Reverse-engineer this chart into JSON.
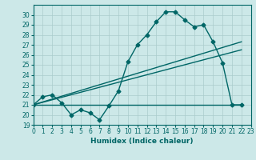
{
  "bg_color": "#cce8e8",
  "grid_color": "#aacccc",
  "line_color": "#006666",
  "x_min": 0,
  "x_max": 23,
  "y_min": 19,
  "y_max": 31,
  "xlabel": "Humidex (Indice chaleur)",
  "yticks": [
    19,
    20,
    21,
    22,
    23,
    24,
    25,
    26,
    27,
    28,
    29,
    30
  ],
  "xticks": [
    0,
    1,
    2,
    3,
    4,
    5,
    6,
    7,
    8,
    9,
    10,
    11,
    12,
    13,
    14,
    15,
    16,
    17,
    18,
    19,
    20,
    21,
    22,
    23
  ],
  "curve1_x": [
    0,
    1,
    2,
    3,
    4,
    5,
    6,
    7,
    8,
    9,
    10,
    11,
    12,
    13,
    14,
    15,
    16,
    17,
    18,
    19,
    20,
    21,
    22
  ],
  "curve1_y": [
    21.0,
    21.8,
    22.0,
    21.2,
    20.0,
    20.5,
    20.2,
    19.5,
    20.9,
    22.4,
    25.3,
    27.0,
    28.0,
    29.3,
    30.3,
    30.3,
    29.5,
    28.8,
    29.0,
    27.3,
    25.2,
    21.0,
    21.0
  ],
  "line2_x": [
    0,
    22
  ],
  "line2_y": [
    21.0,
    27.3
  ],
  "line3_x": [
    0,
    19,
    22
  ],
  "line3_y": [
    21.0,
    21.0,
    21.0
  ],
  "tick_fontsize": 5.5,
  "xlabel_fontsize": 6.5
}
